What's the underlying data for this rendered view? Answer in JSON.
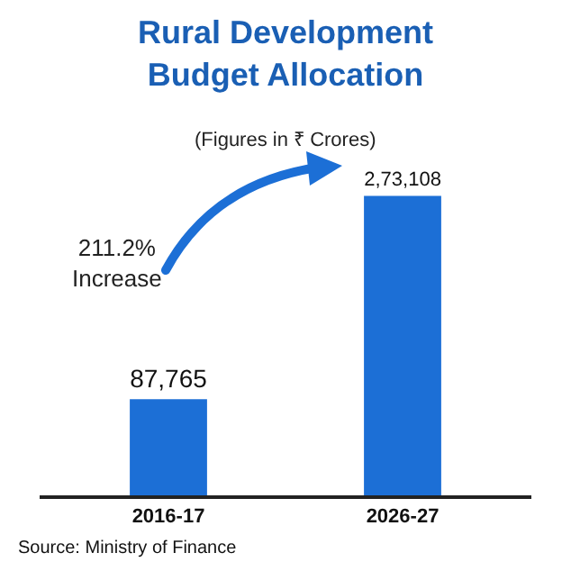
{
  "chart_data": {
    "type": "bar",
    "title": "Rural Development\nBudget Allocation",
    "subtitle": "(Figures in ₹ Crores)",
    "categories": [
      "2016-17",
      "2026-27"
    ],
    "values": [
      87765,
      273108
    ],
    "value_labels": [
      "87,765",
      "2,73,108"
    ],
    "color": "#1c6fd6",
    "annotations": [
      "211.2%\nIncrease",
      "Source: Ministry of Finance"
    ],
    "grid": false,
    "legend": false
  }
}
